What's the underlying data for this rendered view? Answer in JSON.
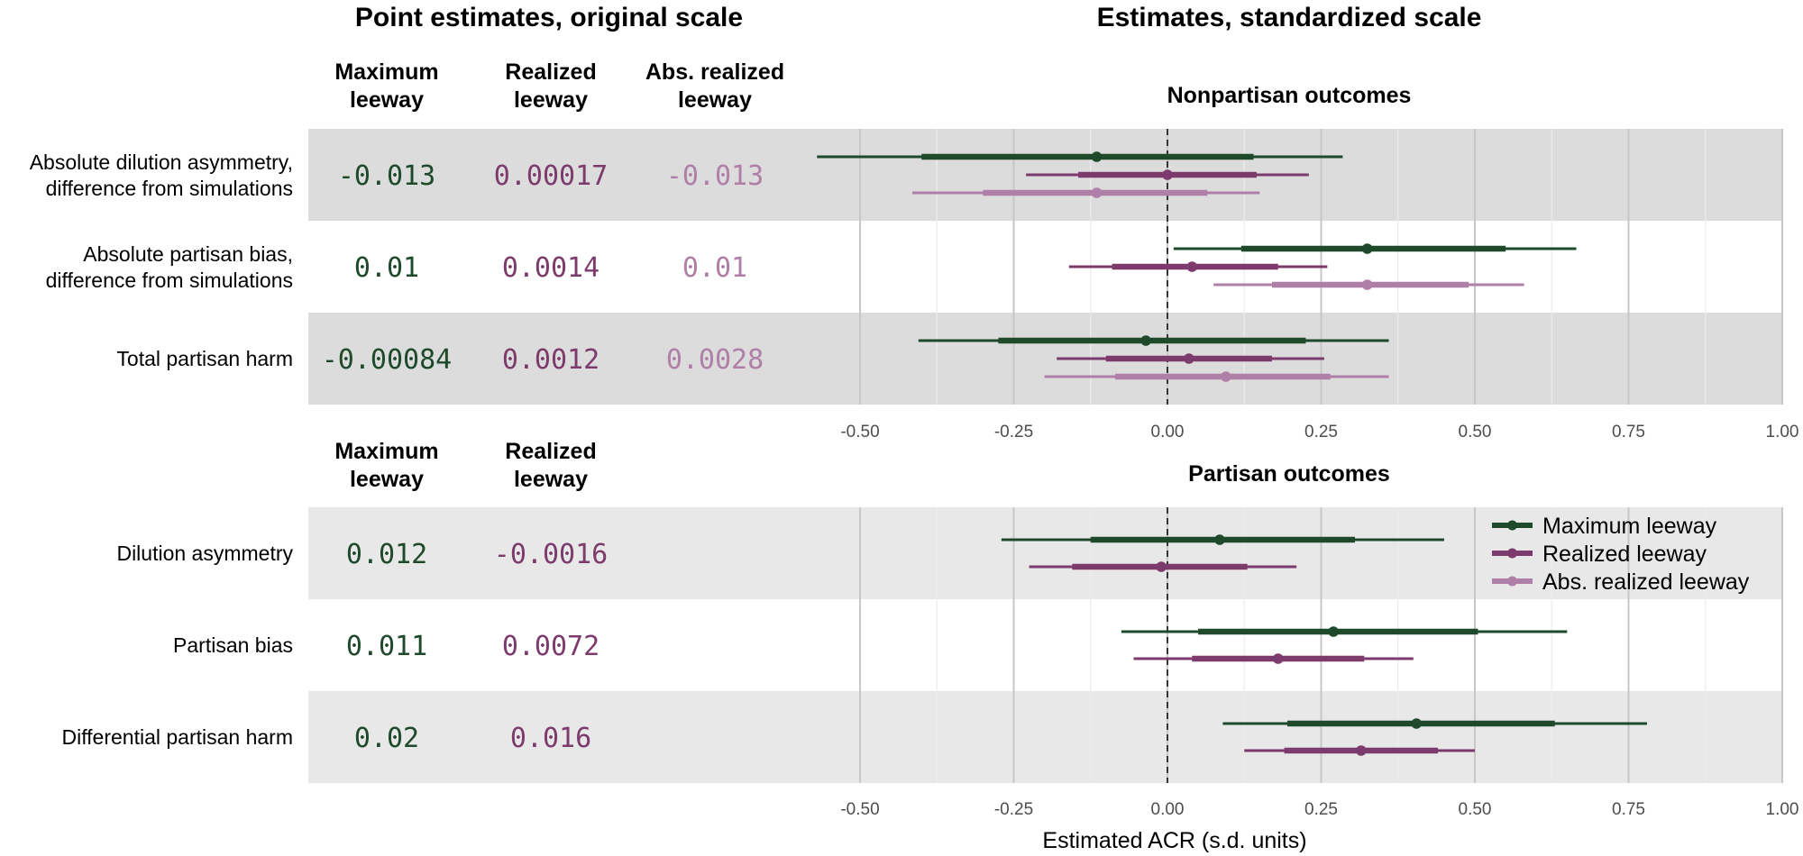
{
  "titles": {
    "left": "Point estimates, original scale",
    "right": "Estimates, standardized scale"
  },
  "tables": {
    "top": {
      "columns": [
        "Maximum\nleeway",
        "Realized\nleeway",
        "Abs. realized\nleeway"
      ],
      "rows": [
        {
          "label": "Absolute dilution asymmetry,\ndifference from simulations",
          "values": [
            "-0.013",
            "0.00017",
            "-0.013"
          ]
        },
        {
          "label": "Absolute partisan bias,\ndifference from simulations",
          "values": [
            "0.01",
            "0.0014",
            "0.01"
          ]
        },
        {
          "label": "Total partisan harm",
          "values": [
            "-0.00084",
            "0.0012",
            "0.0028"
          ]
        }
      ]
    },
    "bottom": {
      "columns": [
        "Maximum\nleeway",
        "Realized\nleeway"
      ],
      "rows": [
        {
          "label": "Dilution asymmetry",
          "values": [
            "0.012",
            "-0.0016"
          ]
        },
        {
          "label": "Partisan bias",
          "values": [
            "0.011",
            "0.0072"
          ]
        },
        {
          "label": "Differential partisan harm",
          "values": [
            "0.02",
            "0.016"
          ]
        }
      ]
    }
  },
  "chart_data": {
    "type": "forest",
    "xlabel": "Estimated ACR (s.d. units)",
    "xlim": [
      -0.6,
      1.0
    ],
    "xticks": [
      -0.5,
      -0.25,
      0.0,
      0.25,
      0.5,
      0.75,
      1.0
    ],
    "xtick_labels": [
      "-0.50",
      "-0.25",
      "0.00",
      "0.25",
      "0.50",
      "0.75",
      "1.00"
    ],
    "reference_line": 0,
    "series": [
      {
        "name": "Maximum leeway",
        "color": "#1e4a2b"
      },
      {
        "name": "Realized leeway",
        "color": "#7d3a6c"
      },
      {
        "name": "Abs. realized leeway",
        "color": "#b07fa8"
      }
    ],
    "panels": [
      {
        "title": "Nonpartisan outcomes",
        "rows": [
          {
            "label": "Absolute dilution asymmetry, difference from simulations",
            "estimates": [
              {
                "series": "Maximum leeway",
                "est": -0.115,
                "lo80": -0.4,
                "hi80": 0.14,
                "lo95": -0.57,
                "hi95": 0.285
              },
              {
                "series": "Realized leeway",
                "est": 0.0,
                "lo80": -0.145,
                "hi80": 0.145,
                "lo95": -0.23,
                "hi95": 0.23
              },
              {
                "series": "Abs. realized leeway",
                "est": -0.115,
                "lo80": -0.3,
                "hi80": 0.065,
                "lo95": -0.415,
                "hi95": 0.15
              }
            ]
          },
          {
            "label": "Absolute partisan bias, difference from simulations",
            "estimates": [
              {
                "series": "Maximum leeway",
                "est": 0.325,
                "lo80": 0.12,
                "hi80": 0.55,
                "lo95": 0.01,
                "hi95": 0.665
              },
              {
                "series": "Realized leeway",
                "est": 0.04,
                "lo80": -0.09,
                "hi80": 0.18,
                "lo95": -0.16,
                "hi95": 0.26
              },
              {
                "series": "Abs. realized leeway",
                "est": 0.325,
                "lo80": 0.17,
                "hi80": 0.49,
                "lo95": 0.075,
                "hi95": 0.58
              }
            ]
          },
          {
            "label": "Total partisan harm",
            "estimates": [
              {
                "series": "Maximum leeway",
                "est": -0.035,
                "lo80": -0.275,
                "hi80": 0.225,
                "lo95": -0.405,
                "hi95": 0.36
              },
              {
                "series": "Realized leeway",
                "est": 0.035,
                "lo80": -0.1,
                "hi80": 0.17,
                "lo95": -0.18,
                "hi95": 0.255
              },
              {
                "series": "Abs. realized leeway",
                "est": 0.095,
                "lo80": -0.085,
                "hi80": 0.265,
                "lo95": -0.2,
                "hi95": 0.36
              }
            ]
          }
        ]
      },
      {
        "title": "Partisan outcomes",
        "rows": [
          {
            "label": "Dilution asymmetry",
            "estimates": [
              {
                "series": "Maximum leeway",
                "est": 0.085,
                "lo80": -0.125,
                "hi80": 0.305,
                "lo95": -0.27,
                "hi95": 0.45
              },
              {
                "series": "Realized leeway",
                "est": -0.01,
                "lo80": -0.155,
                "hi80": 0.13,
                "lo95": -0.225,
                "hi95": 0.21
              }
            ]
          },
          {
            "label": "Partisan bias",
            "estimates": [
              {
                "series": "Maximum leeway",
                "est": 0.27,
                "lo80": 0.05,
                "hi80": 0.505,
                "lo95": -0.075,
                "hi95": 0.65
              },
              {
                "series": "Realized leeway",
                "est": 0.18,
                "lo80": 0.04,
                "hi80": 0.32,
                "lo95": -0.055,
                "hi95": 0.4
              }
            ]
          },
          {
            "label": "Differential partisan harm",
            "estimates": [
              {
                "series": "Maximum leeway",
                "est": 0.405,
                "lo80": 0.195,
                "hi80": 0.63,
                "lo95": 0.09,
                "hi95": 0.78
              },
              {
                "series": "Realized leeway",
                "est": 0.315,
                "lo80": 0.19,
                "hi80": 0.44,
                "lo95": 0.125,
                "hi95": 0.5
              }
            ]
          }
        ]
      }
    ]
  }
}
